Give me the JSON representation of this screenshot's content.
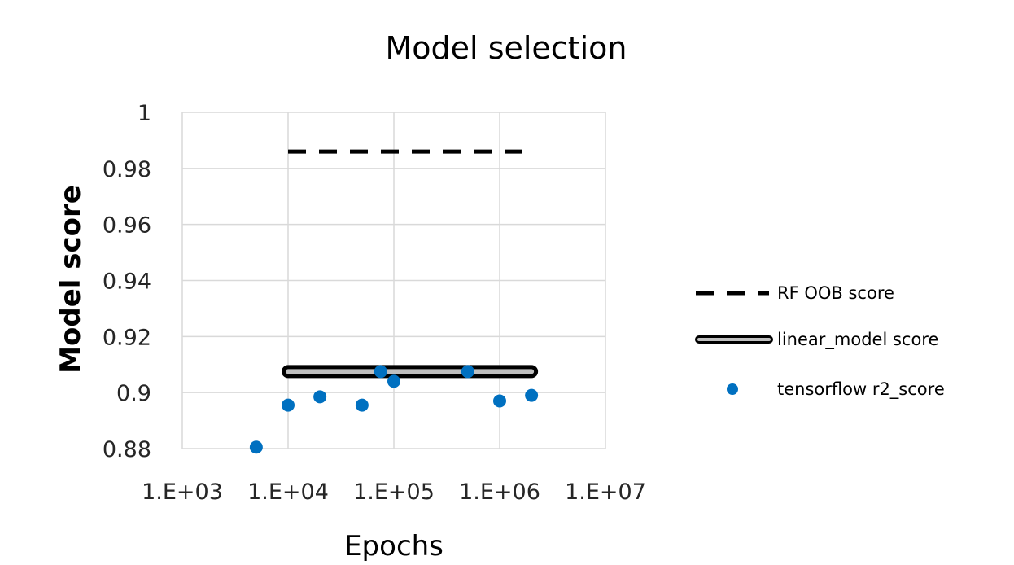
{
  "chart_data": {
    "type": "scatter",
    "title": "Model selection",
    "xlabel": "Epochs",
    "ylabel": "Model score",
    "x_scale": "log",
    "xlim": [
      1000,
      10000000
    ],
    "ylim": [
      0.88,
      1
    ],
    "x_ticks": [
      1000,
      10000,
      100000,
      1000000,
      10000000
    ],
    "x_tick_labels": [
      "1.E+03",
      "1.E+04",
      "1.E+05",
      "1.E+06",
      "1.E+07"
    ],
    "y_ticks": [
      0.88,
      0.9,
      0.92,
      0.94,
      0.96,
      0.98,
      1
    ],
    "y_tick_labels": [
      "0.88",
      "0.9",
      "0.92",
      "0.94",
      "0.96",
      "0.98",
      "1"
    ],
    "grid": true,
    "legend_position": "right",
    "series": [
      {
        "name": "RF OOB score",
        "kind": "dashed-line",
        "color": "#000000",
        "x": [
          10000,
          2000000
        ],
        "y": [
          0.986,
          0.986
        ]
      },
      {
        "name": "linear_model score",
        "kind": "double-line",
        "color": "#000000",
        "x": [
          10000,
          2000000
        ],
        "y": [
          0.9075,
          0.9075
        ]
      },
      {
        "name": "tensorflow r2_score",
        "kind": "scatter",
        "color": "#0070C0",
        "x": [
          5000,
          10000,
          20000,
          50000,
          75000,
          100000,
          500000,
          1000000,
          2000000
        ],
        "y": [
          0.8805,
          0.8955,
          0.8985,
          0.8955,
          0.9075,
          0.904,
          0.9075,
          0.897,
          0.899
        ]
      }
    ]
  }
}
